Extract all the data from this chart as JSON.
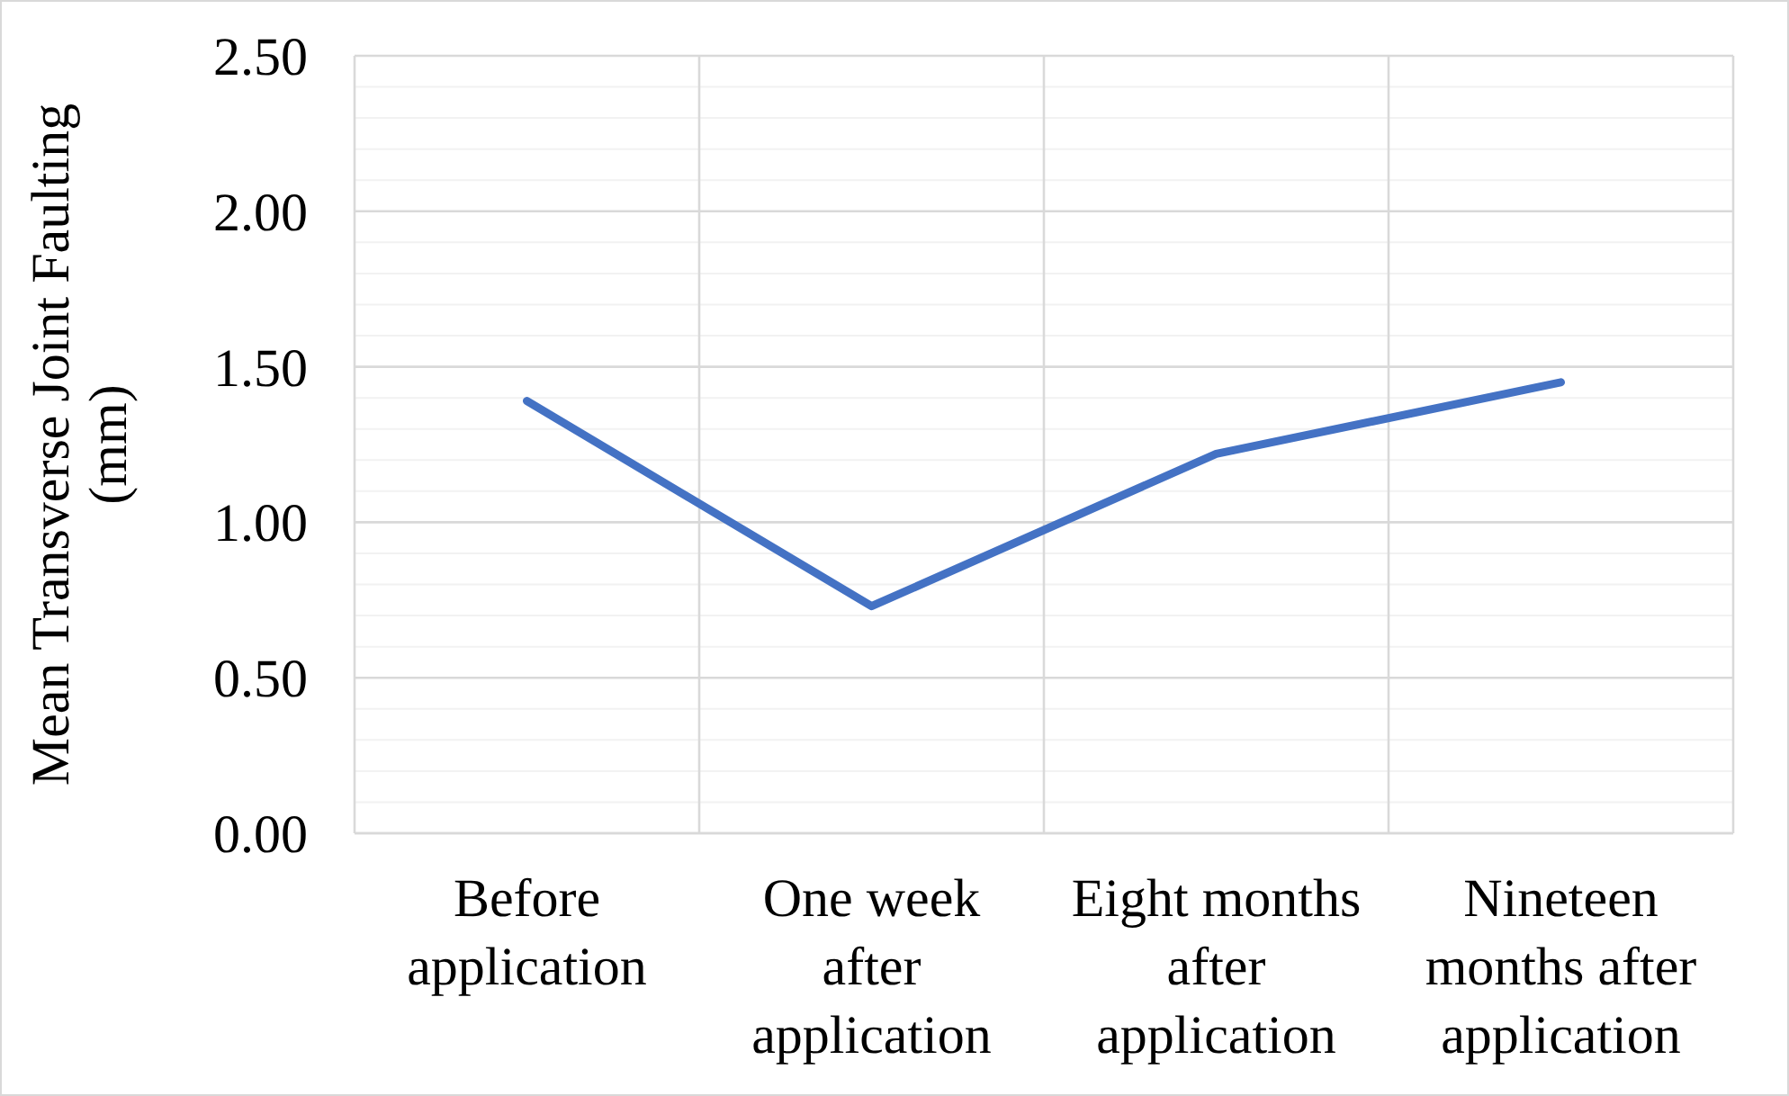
{
  "chart_data": {
    "type": "line",
    "ylabel": "Mean Transverse Joint Faulting (mm)",
    "categories": [
      "Before application",
      "One week after application",
      "Eight months after application",
      "Nineteen months after application"
    ],
    "series": [
      {
        "color": "#4472c4",
        "values": [
          1.39,
          0.73,
          1.22,
          1.45
        ]
      }
    ],
    "ylim": [
      0,
      2.5
    ],
    "yticks": [
      {
        "value": 0,
        "label": "0.00"
      },
      {
        "value": 0.5,
        "label": "0.50"
      },
      {
        "value": 1,
        "label": "1.00"
      },
      {
        "value": 1.5,
        "label": "1.50"
      },
      {
        "value": 2,
        "label": "2.00"
      },
      {
        "value": 2.5,
        "label": "2.50"
      }
    ],
    "grid": true
  }
}
